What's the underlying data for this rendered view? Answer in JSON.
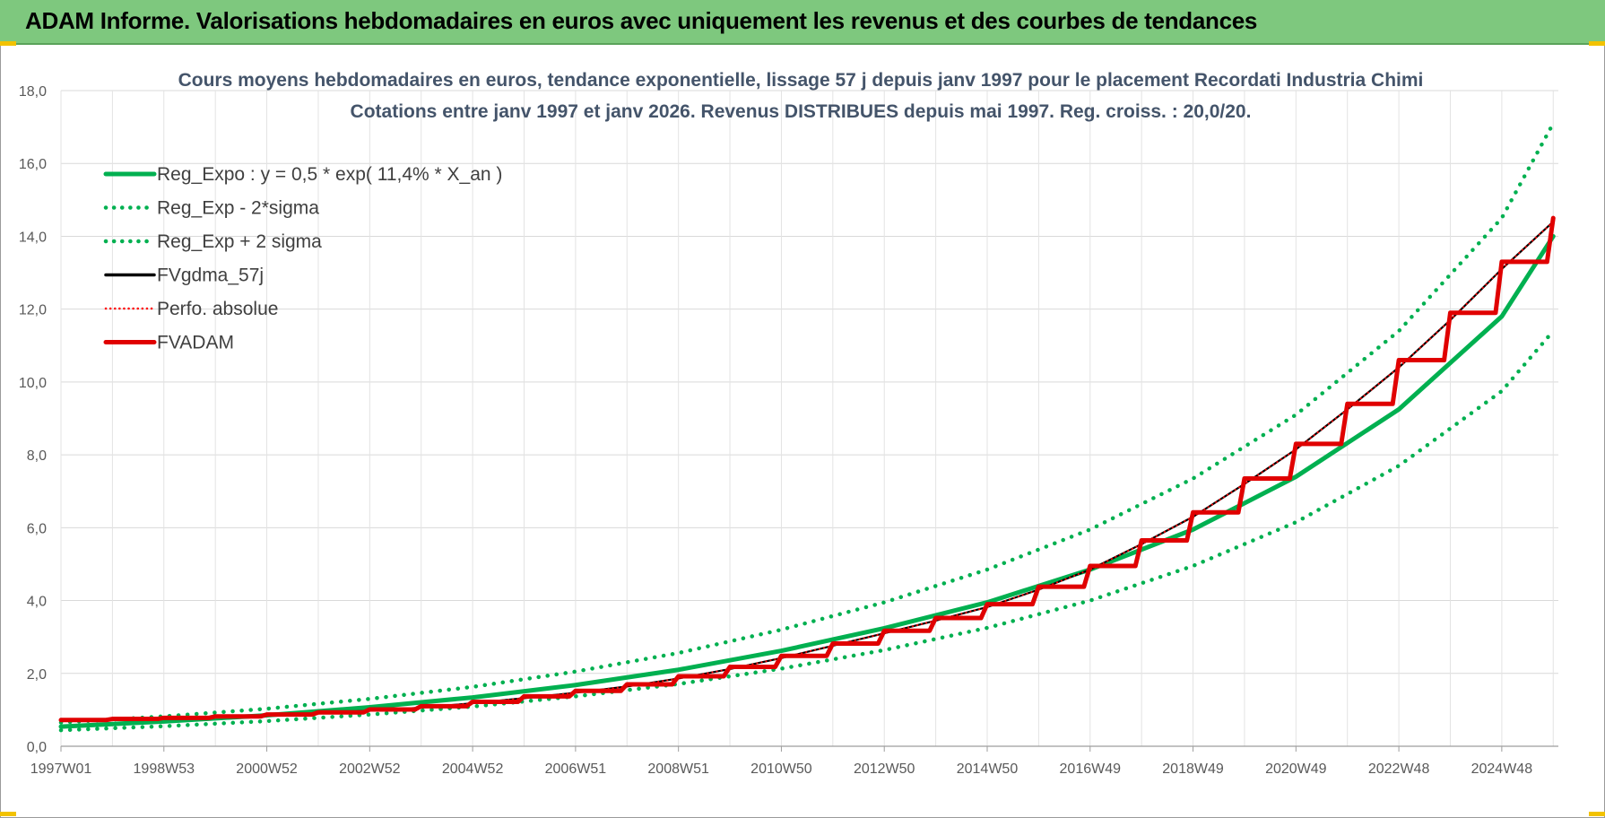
{
  "header": {
    "title": "ADAM Informe. Valorisations hebdomadaires en euros avec uniquement les revenus et des courbes de tendances"
  },
  "chart_data": {
    "type": "line",
    "title_line1": "Cours moyens hebdomadaires en euros, tendance exponentielle, lissage 57 j depuis janv 1997 pour le placement Recordati Industria Chimi",
    "title_line2": "Cotations entre janv 1997 et janv 2026. Revenus DISTRIBUES depuis mai 1997.  Reg. croiss. : 20,0/20.",
    "x_tick_labels": [
      "1997W01",
      "1998W53",
      "2000W52",
      "2002W52",
      "2004W52",
      "2006W51",
      "2008W51",
      "2010W50",
      "2012W50",
      "2014W50",
      "2016W49",
      "2018W49",
      "2020W49",
      "2022W48",
      "2024W48"
    ],
    "x_range_years": [
      1997.0,
      2026.1
    ],
    "y_ticks": [
      "0,0",
      "2,0",
      "4,0",
      "6,0",
      "8,0",
      "10,0",
      "12,0",
      "14,0",
      "16,0",
      "18,0"
    ],
    "ylim": [
      0,
      18
    ],
    "grid": true,
    "legend_position": "top-left",
    "series": [
      {
        "name": "Reg_Expo : y = 0,5 * exp( 11,4% *  X_an )",
        "style": "solid-thick",
        "color": "#00b050",
        "x": [
          1997,
          1999,
          2001,
          2003,
          2005,
          2007,
          2009,
          2011,
          2013,
          2015,
          2017,
          2019,
          2021,
          2023,
          2025,
          2026
        ],
        "y": [
          0.54,
          0.68,
          0.85,
          1.07,
          1.34,
          1.68,
          2.1,
          2.62,
          3.24,
          3.95,
          4.85,
          5.95,
          7.4,
          9.25,
          11.8,
          14.0
        ]
      },
      {
        "name": "Reg_Exp - 2*sigma",
        "style": "dotted",
        "color": "#00b050",
        "x": [
          1997,
          1999,
          2001,
          2003,
          2005,
          2007,
          2009,
          2011,
          2013,
          2015,
          2017,
          2019,
          2021,
          2023,
          2025,
          2026
        ],
        "y": [
          0.44,
          0.55,
          0.69,
          0.87,
          1.09,
          1.37,
          1.71,
          2.13,
          2.64,
          3.25,
          4.0,
          4.95,
          6.15,
          7.7,
          9.75,
          11.4
        ]
      },
      {
        "name": "Reg_Exp + 2 sigma",
        "style": "dotted",
        "color": "#00b050",
        "x": [
          1997,
          1999,
          2001,
          2003,
          2005,
          2007,
          2009,
          2011,
          2013,
          2015,
          2017,
          2019,
          2021,
          2023,
          2025,
          2026
        ],
        "y": [
          0.65,
          0.82,
          1.03,
          1.3,
          1.63,
          2.05,
          2.56,
          3.2,
          3.95,
          4.85,
          5.95,
          7.35,
          9.1,
          11.4,
          14.5,
          17.1
        ]
      },
      {
        "name": "FVgdma_57j",
        "style": "solid",
        "color": "#000000",
        "x": [
          1997,
          1998,
          1999,
          2000,
          2001,
          2002,
          2003,
          2004,
          2005,
          2006,
          2007,
          2008,
          2009,
          2010,
          2011,
          2012,
          2013,
          2014,
          2015,
          2016,
          2017,
          2018,
          2019,
          2020,
          2021,
          2022,
          2023,
          2024,
          2025,
          2026
        ],
        "y": [
          0.7,
          0.73,
          0.76,
          0.8,
          0.84,
          0.9,
          0.98,
          1.06,
          1.18,
          1.32,
          1.47,
          1.64,
          1.86,
          2.12,
          2.42,
          2.76,
          3.1,
          3.45,
          3.82,
          4.3,
          4.85,
          5.55,
          6.3,
          7.2,
          8.15,
          9.25,
          10.4,
          11.7,
          13.1,
          14.4
        ]
      },
      {
        "name": "Perfo. absolue",
        "style": "dotted",
        "color": "#ff0000",
        "x": [
          1997,
          1998,
          1999,
          2000,
          2001,
          2002,
          2003,
          2004,
          2005,
          2006,
          2007,
          2008,
          2009,
          2010,
          2011,
          2012,
          2013,
          2014,
          2015,
          2016,
          2017,
          2018,
          2019,
          2020,
          2021,
          2022,
          2023,
          2024,
          2025,
          2026
        ],
        "y": [
          0.7,
          0.73,
          0.76,
          0.8,
          0.84,
          0.9,
          0.98,
          1.06,
          1.18,
          1.32,
          1.47,
          1.64,
          1.86,
          2.12,
          2.42,
          2.76,
          3.1,
          3.45,
          3.82,
          4.3,
          4.85,
          5.55,
          6.3,
          7.2,
          8.15,
          9.25,
          10.4,
          11.7,
          13.1,
          14.4
        ]
      },
      {
        "name": "FVADAM",
        "style": "step-thick",
        "color": "#e00000",
        "x": [
          1997,
          1998,
          1999,
          2000,
          2001,
          2002,
          2003,
          2004,
          2005,
          2006,
          2007,
          2008,
          2009,
          2010,
          2011,
          2012,
          2013,
          2014,
          2015,
          2016,
          2017,
          2018,
          2019,
          2020,
          2021,
          2022,
          2023,
          2024,
          2025,
          2026
        ],
        "y": [
          0.72,
          0.75,
          0.78,
          0.82,
          0.87,
          0.93,
          1.01,
          1.1,
          1.22,
          1.37,
          1.52,
          1.7,
          1.92,
          2.18,
          2.48,
          2.82,
          3.17,
          3.52,
          3.9,
          4.38,
          4.95,
          5.65,
          6.42,
          7.35,
          8.3,
          9.4,
          10.6,
          11.9,
          13.3,
          14.5
        ]
      }
    ]
  }
}
